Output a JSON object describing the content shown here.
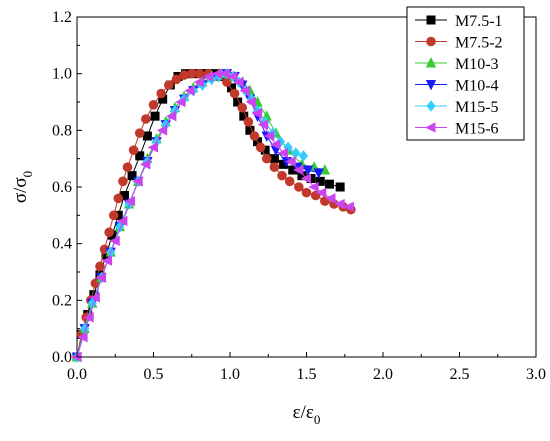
{
  "chart_data": {
    "type": "line",
    "title": "",
    "xlabel": {
      "main": "ε/ε",
      "sub": "0"
    },
    "ylabel": {
      "main": "σ/σ",
      "sub": "0"
    },
    "xlim": [
      0.0,
      3.0
    ],
    "ylim": [
      0.0,
      1.2
    ],
    "xticks": [
      0.0,
      0.5,
      1.0,
      1.5,
      2.0,
      2.5,
      3.0
    ],
    "yticks": [
      0.0,
      0.2,
      0.4,
      0.6,
      0.8,
      1.0,
      1.2
    ],
    "xtick_labels": [
      "0.0",
      "0.5",
      "1.0",
      "1.5",
      "2.0",
      "2.5",
      "3.0"
    ],
    "ytick_labels": [
      "0.0",
      "0.2",
      "0.4",
      "0.6",
      "0.8",
      "1.0",
      "1.2"
    ],
    "grid": false,
    "legend_position": "top-right",
    "series": [
      {
        "name": "M7.5-1",
        "marker": "square",
        "color": "#000000",
        "x": [
          0.0,
          0.03,
          0.07,
          0.11,
          0.15,
          0.19,
          0.23,
          0.27,
          0.31,
          0.36,
          0.41,
          0.46,
          0.51,
          0.56,
          0.61,
          0.66,
          0.71,
          0.76,
          0.81,
          0.86,
          0.91,
          0.96,
          1.01,
          1.05,
          1.09,
          1.13,
          1.18,
          1.23,
          1.29,
          1.35,
          1.41,
          1.47,
          1.53,
          1.59,
          1.65,
          1.72
        ],
        "y": [
          0.0,
          0.08,
          0.15,
          0.22,
          0.29,
          0.36,
          0.43,
          0.5,
          0.57,
          0.64,
          0.71,
          0.78,
          0.85,
          0.91,
          0.96,
          0.99,
          1.0,
          1.0,
          1.0,
          1.0,
          1.0,
          0.99,
          0.95,
          0.9,
          0.85,
          0.8,
          0.76,
          0.73,
          0.7,
          0.68,
          0.66,
          0.64,
          0.63,
          0.62,
          0.61,
          0.6
        ]
      },
      {
        "name": "M7.5-2",
        "marker": "circle",
        "color": "#c0392b",
        "x": [
          0.0,
          0.03,
          0.06,
          0.09,
          0.12,
          0.15,
          0.18,
          0.21,
          0.24,
          0.27,
          0.3,
          0.33,
          0.37,
          0.41,
          0.45,
          0.5,
          0.55,
          0.6,
          0.65,
          0.7,
          0.75,
          0.8,
          0.86,
          0.92,
          0.98,
          1.03,
          1.08,
          1.12,
          1.16,
          1.2,
          1.24,
          1.29,
          1.34,
          1.39,
          1.45,
          1.5,
          1.56,
          1.62,
          1.68,
          1.74,
          1.79
        ],
        "y": [
          0.0,
          0.08,
          0.14,
          0.2,
          0.26,
          0.32,
          0.38,
          0.44,
          0.5,
          0.56,
          0.62,
          0.67,
          0.73,
          0.79,
          0.84,
          0.89,
          0.93,
          0.96,
          0.98,
          0.995,
          1.0,
          1.0,
          1.0,
          0.99,
          0.97,
          0.93,
          0.88,
          0.83,
          0.78,
          0.74,
          0.7,
          0.67,
          0.64,
          0.62,
          0.6,
          0.58,
          0.57,
          0.55,
          0.54,
          0.53,
          0.52
        ]
      },
      {
        "name": "M10-3",
        "marker": "triangle-up",
        "color": "#33cc33",
        "x": [
          0.0,
          0.05,
          0.1,
          0.16,
          0.22,
          0.28,
          0.34,
          0.4,
          0.46,
          0.52,
          0.58,
          0.64,
          0.7,
          0.76,
          0.82,
          0.88,
          0.93,
          0.98,
          1.03,
          1.08,
          1.13,
          1.18,
          1.24,
          1.3,
          1.38,
          1.47,
          1.55,
          1.62
        ],
        "y": [
          0.0,
          0.1,
          0.19,
          0.28,
          0.37,
          0.46,
          0.54,
          0.62,
          0.7,
          0.77,
          0.83,
          0.88,
          0.92,
          0.95,
          0.97,
          0.99,
          1.0,
          1.0,
          0.99,
          0.97,
          0.94,
          0.9,
          0.85,
          0.79,
          0.73,
          0.68,
          0.67,
          0.66
        ]
      },
      {
        "name": "M10-4",
        "marker": "triangle-down",
        "color": "#1a1aff",
        "x": [
          0.0,
          0.05,
          0.1,
          0.16,
          0.22,
          0.28,
          0.34,
          0.4,
          0.46,
          0.52,
          0.58,
          0.64,
          0.7,
          0.76,
          0.82,
          0.88,
          0.93,
          0.98,
          1.03,
          1.08,
          1.13,
          1.18,
          1.24,
          1.3,
          1.37,
          1.44,
          1.51,
          1.58
        ],
        "y": [
          0.0,
          0.1,
          0.19,
          0.28,
          0.37,
          0.46,
          0.54,
          0.62,
          0.69,
          0.76,
          0.82,
          0.87,
          0.91,
          0.94,
          0.96,
          0.98,
          0.99,
          1.0,
          0.99,
          0.96,
          0.91,
          0.85,
          0.78,
          0.73,
          0.69,
          0.67,
          0.66,
          0.65
        ]
      },
      {
        "name": "M15-5",
        "marker": "diamond",
        "color": "#33ccff",
        "x": [
          0.0,
          0.05,
          0.1,
          0.16,
          0.22,
          0.28,
          0.34,
          0.4,
          0.46,
          0.52,
          0.58,
          0.64,
          0.7,
          0.76,
          0.82,
          0.88,
          0.93,
          0.98,
          1.02,
          1.06,
          1.1,
          1.14,
          1.18,
          1.23,
          1.28,
          1.33,
          1.38,
          1.43,
          1.48
        ],
        "y": [
          0.0,
          0.1,
          0.19,
          0.28,
          0.37,
          0.46,
          0.54,
          0.62,
          0.69,
          0.76,
          0.82,
          0.87,
          0.91,
          0.94,
          0.96,
          0.98,
          0.99,
          1.0,
          0.99,
          0.97,
          0.94,
          0.91,
          0.87,
          0.83,
          0.79,
          0.76,
          0.74,
          0.72,
          0.71
        ]
      },
      {
        "name": "M15-6",
        "marker": "triangle-left",
        "color": "#cc44ee",
        "x": [
          0.0,
          0.04,
          0.08,
          0.12,
          0.16,
          0.2,
          0.25,
          0.3,
          0.35,
          0.4,
          0.45,
          0.5,
          0.56,
          0.62,
          0.68,
          0.74,
          0.8,
          0.86,
          0.92,
          0.97,
          1.02,
          1.06,
          1.1,
          1.14,
          1.18,
          1.22,
          1.26,
          1.3,
          1.35,
          1.4,
          1.45,
          1.5,
          1.55,
          1.6,
          1.66,
          1.72,
          1.78
        ],
        "y": [
          0.0,
          0.07,
          0.14,
          0.21,
          0.28,
          0.34,
          0.41,
          0.48,
          0.55,
          0.62,
          0.68,
          0.74,
          0.8,
          0.85,
          0.9,
          0.94,
          0.97,
          0.99,
          1.0,
          1.0,
          0.99,
          0.97,
          0.94,
          0.9,
          0.86,
          0.82,
          0.78,
          0.75,
          0.72,
          0.69,
          0.66,
          0.63,
          0.6,
          0.58,
          0.56,
          0.54,
          0.53
        ]
      }
    ]
  }
}
